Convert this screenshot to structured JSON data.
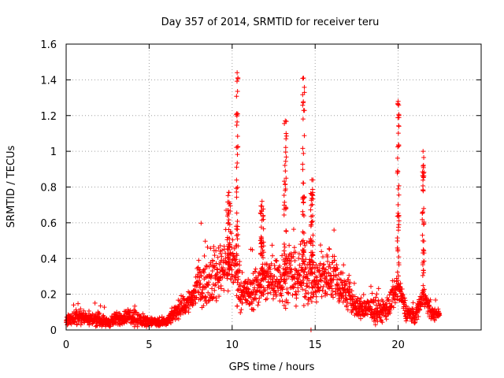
{
  "chart_data": {
    "type": "scatter",
    "title": "Day 357 of 2014, SRMTID for receiver teru",
    "xlabel": "GPS time / hours",
    "ylabel": "SRMTID / TECUs",
    "xlim": [
      0,
      25
    ],
    "ylim": [
      0,
      1.6
    ],
    "xticks": [
      0,
      5,
      10,
      15,
      20
    ],
    "xtick_labels": [
      "0",
      "5",
      "10",
      "15",
      "20"
    ],
    "yticks": [
      0,
      0.2,
      0.4,
      0.6,
      0.8,
      1,
      1.2,
      1.4,
      1.6
    ],
    "ytick_labels": [
      "0",
      "0.2",
      "0.4",
      "0.6",
      "0.8",
      "1",
      "1.2",
      "1.4",
      "1.6"
    ],
    "grid": true,
    "marker": "plus",
    "color": "#ff0000",
    "series": [
      {
        "name": "SRMTID",
        "profile": [
          [
            0.0,
            0.05,
            0.02
          ],
          [
            0.5,
            0.07,
            0.03
          ],
          [
            1.0,
            0.07,
            0.03
          ],
          [
            1.5,
            0.06,
            0.03
          ],
          [
            2.0,
            0.06,
            0.03
          ],
          [
            2.5,
            0.04,
            0.02
          ],
          [
            3.0,
            0.06,
            0.03
          ],
          [
            3.5,
            0.07,
            0.03
          ],
          [
            4.0,
            0.08,
            0.04
          ],
          [
            4.5,
            0.05,
            0.03
          ],
          [
            5.0,
            0.05,
            0.02
          ],
          [
            5.5,
            0.04,
            0.02
          ],
          [
            6.0,
            0.04,
            0.02
          ],
          [
            6.4,
            0.08,
            0.03
          ],
          [
            6.8,
            0.12,
            0.04
          ],
          [
            7.2,
            0.14,
            0.05
          ],
          [
            7.6,
            0.18,
            0.06
          ],
          [
            8.0,
            0.26,
            0.1
          ],
          [
            8.5,
            0.27,
            0.1
          ],
          [
            9.0,
            0.3,
            0.12
          ],
          [
            9.5,
            0.38,
            0.12
          ],
          [
            10.0,
            0.4,
            0.15
          ],
          [
            10.5,
            0.22,
            0.08
          ],
          [
            11.0,
            0.2,
            0.08
          ],
          [
            11.5,
            0.25,
            0.1
          ],
          [
            12.0,
            0.28,
            0.1
          ],
          [
            12.5,
            0.28,
            0.1
          ],
          [
            13.0,
            0.3,
            0.12
          ],
          [
            13.5,
            0.3,
            0.12
          ],
          [
            14.0,
            0.3,
            0.12
          ],
          [
            14.5,
            0.33,
            0.14
          ],
          [
            15.0,
            0.25,
            0.1
          ],
          [
            15.5,
            0.3,
            0.12
          ],
          [
            16.0,
            0.32,
            0.12
          ],
          [
            16.5,
            0.25,
            0.1
          ],
          [
            17.0,
            0.2,
            0.08
          ],
          [
            17.5,
            0.12,
            0.05
          ],
          [
            18.0,
            0.12,
            0.05
          ],
          [
            18.5,
            0.11,
            0.05
          ],
          [
            19.0,
            0.1,
            0.05
          ],
          [
            19.5,
            0.14,
            0.06
          ],
          [
            20.0,
            0.24,
            0.06
          ],
          [
            20.5,
            0.1,
            0.04
          ],
          [
            21.0,
            0.07,
            0.03
          ],
          [
            21.5,
            0.2,
            0.05
          ],
          [
            22.0,
            0.09,
            0.03
          ],
          [
            22.5,
            0.09,
            0.02
          ]
        ],
        "spikes": [
          {
            "x": 10.3,
            "peak": 1.44,
            "width": 0.12
          },
          {
            "x": 13.2,
            "peak": 1.17,
            "width": 0.15
          },
          {
            "x": 14.3,
            "peak": 1.41,
            "width": 0.12
          },
          {
            "x": 14.8,
            "peak": 0.84,
            "width": 0.15
          },
          {
            "x": 20.0,
            "peak": 1.28,
            "width": 0.1
          },
          {
            "x": 21.5,
            "peak": 1.0,
            "width": 0.12
          },
          {
            "x": 9.8,
            "peak": 0.77,
            "width": 0.2
          },
          {
            "x": 11.8,
            "peak": 0.72,
            "width": 0.2
          }
        ],
        "outliers": [
          [
            14.75,
            0.0
          ]
        ]
      }
    ]
  }
}
